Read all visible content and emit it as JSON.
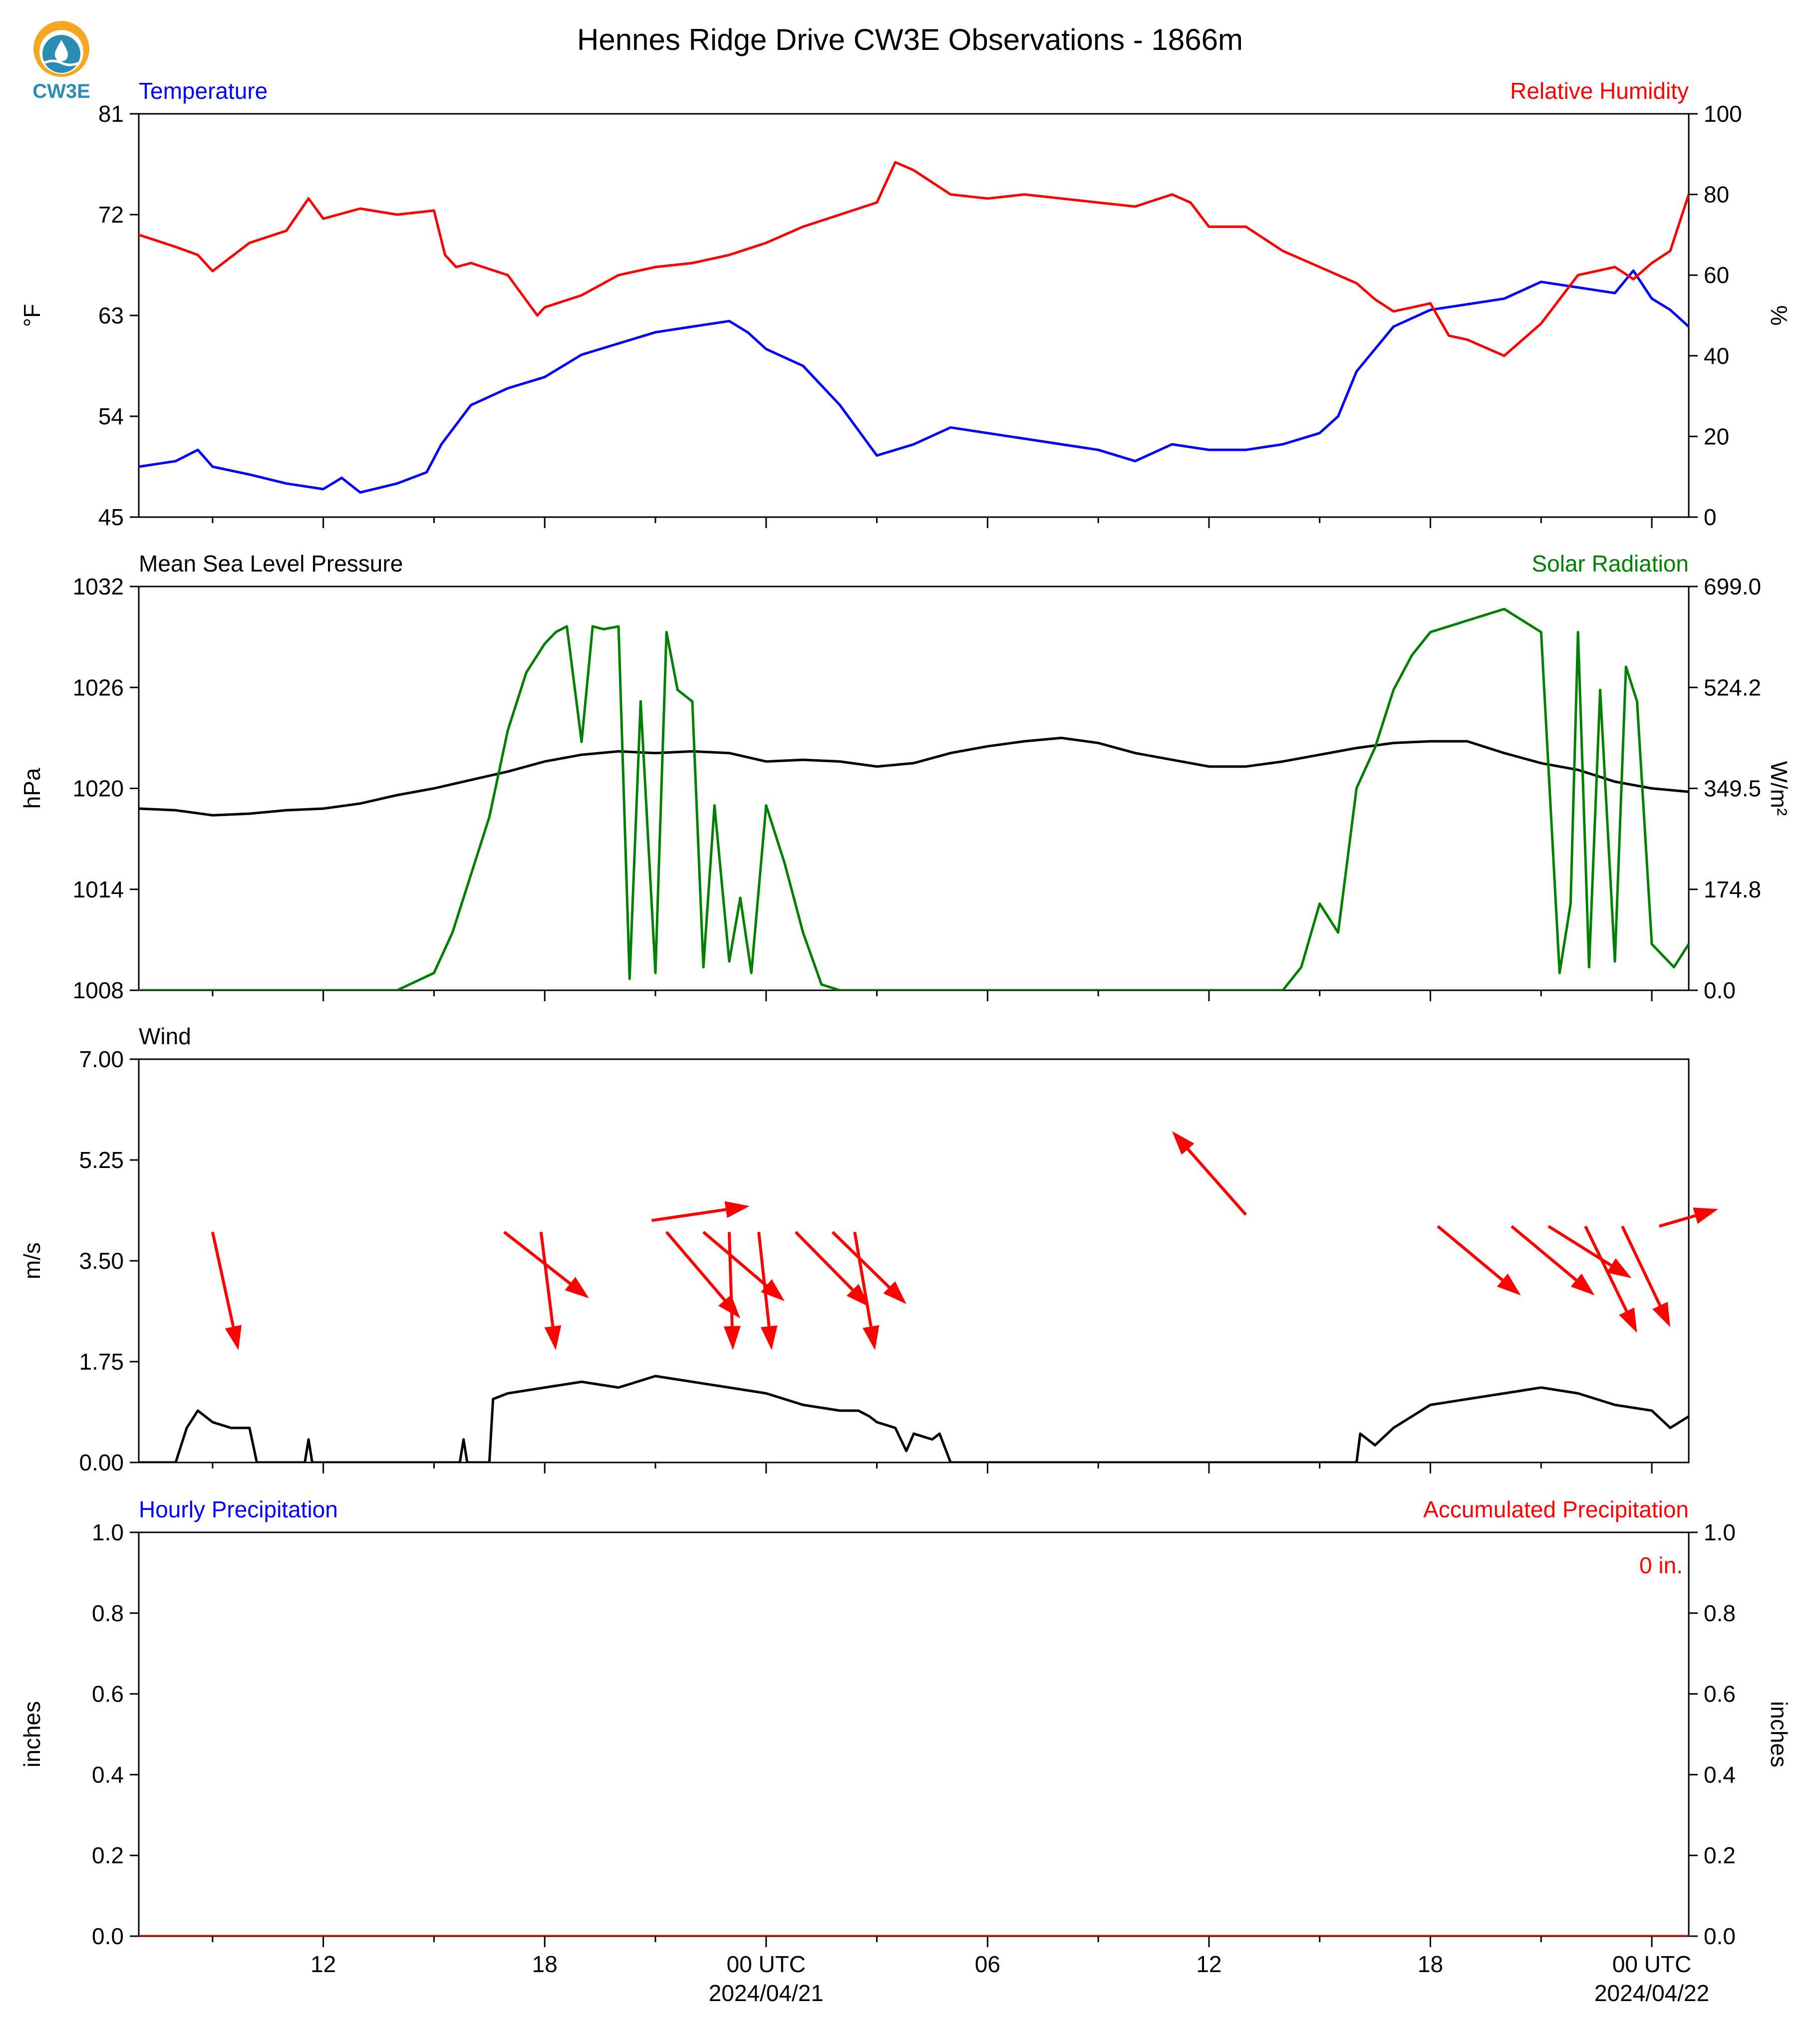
{
  "title": "Hennes Ridge Drive CW3E Observations - 1866m",
  "logo": {
    "text": "CW3E",
    "color": "#2b8db3",
    "accent": "#f5a623"
  },
  "colors": {
    "temperature": "#0000ff",
    "humidity": "#ff0000",
    "pressure": "#000000",
    "solar": "#008000",
    "wind": "#000000",
    "wind_arrows": "#ff0000",
    "precip_hourly": "#0000ff",
    "precip_accum": "#ff0000"
  },
  "time_axis": {
    "ticks": [
      {
        "hour": 12,
        "label": "12"
      },
      {
        "hour": 18,
        "label": "18"
      },
      {
        "hour": 24,
        "label": "00 UTC",
        "sublabel": "2024/04/21"
      },
      {
        "hour": 30,
        "label": "06"
      },
      {
        "hour": 36,
        "label": "12"
      },
      {
        "hour": 42,
        "label": "18"
      },
      {
        "hour": 48,
        "label": "00 UTC",
        "sublabel": "2024/04/22"
      }
    ],
    "minor_tick_hours": [
      9,
      15,
      21,
      27,
      33,
      39,
      45
    ]
  },
  "chart_data": [
    {
      "type": "line",
      "panel": "temperature-humidity",
      "x_range_hours": [
        7,
        49
      ],
      "left_title": "Temperature",
      "right_title": "Relative Humidity",
      "left_ylabel": "°F",
      "right_ylabel": "%",
      "left_ylim": [
        45,
        81
      ],
      "left_ticks": [
        "45",
        "54",
        "63",
        "72",
        "81"
      ],
      "right_ylim": [
        0,
        100
      ],
      "right_ticks": [
        "0",
        "20",
        "40",
        "60",
        "80",
        "100"
      ],
      "series": [
        {
          "name": "Temperature",
          "axis": "left",
          "x": [
            7.0,
            8.0,
            8.6,
            9.0,
            10.0,
            11.0,
            12.0,
            12.5,
            13.0,
            14.0,
            14.8,
            15.2,
            16.0,
            17.0,
            18.0,
            19.0,
            20.0,
            21.0,
            22.0,
            23.0,
            23.5,
            24.0,
            25.0,
            26.0,
            27.0,
            28.0,
            29.0,
            30.0,
            31.0,
            32.0,
            33.0,
            34.0,
            35.0,
            36.0,
            37.0,
            38.0,
            39.0,
            39.5,
            40.0,
            41.0,
            42.0,
            43.0,
            44.0,
            45.0,
            46.0,
            47.0,
            47.5,
            48.0,
            48.5,
            49.0
          ],
          "y": [
            49.5,
            50.0,
            51.0,
            49.5,
            48.8,
            48.0,
            47.5,
            48.5,
            47.2,
            48.0,
            49.0,
            51.5,
            55.0,
            56.5,
            57.5,
            59.5,
            60.5,
            61.5,
            62.0,
            62.5,
            61.5,
            60.0,
            58.5,
            55.0,
            50.5,
            51.5,
            53.0,
            52.5,
            52.0,
            51.5,
            51.0,
            50.0,
            51.5,
            51.0,
            51.0,
            51.5,
            52.5,
            54.0,
            58.0,
            62.0,
            63.5,
            64.0,
            64.5,
            66.0,
            65.5,
            65.0,
            67.0,
            64.5,
            63.5,
            62.0
          ]
        },
        {
          "name": "Relative Humidity",
          "axis": "right",
          "x": [
            7.0,
            8.0,
            8.6,
            9.0,
            10.0,
            11.0,
            11.6,
            12.0,
            13.0,
            14.0,
            15.0,
            15.3,
            15.6,
            16.0,
            17.0,
            17.8,
            18.0,
            19.0,
            20.0,
            21.0,
            22.0,
            23.0,
            24.0,
            25.0,
            26.0,
            27.0,
            27.5,
            28.0,
            29.0,
            30.0,
            31.0,
            32.0,
            33.0,
            34.0,
            35.0,
            35.5,
            36.0,
            37.0,
            38.0,
            39.0,
            40.0,
            40.5,
            41.0,
            42.0,
            42.5,
            43.0,
            44.0,
            45.0,
            46.0,
            47.0,
            47.5,
            48.0,
            48.5,
            49.0
          ],
          "y": [
            70.0,
            67.0,
            65.0,
            61.0,
            68.0,
            71.0,
            79.0,
            74.0,
            76.5,
            75.0,
            76.0,
            65.0,
            62.0,
            63.0,
            60.0,
            50.0,
            52.0,
            55.0,
            60.0,
            62.0,
            63.0,
            65.0,
            68.0,
            72.0,
            75.0,
            78.0,
            88.0,
            86.0,
            80.0,
            79.0,
            80.0,
            79.0,
            78.0,
            77.0,
            80.0,
            78.0,
            72.0,
            72.0,
            66.0,
            62.0,
            58.0,
            54.0,
            51.0,
            53.0,
            45.0,
            44.0,
            40.0,
            48.0,
            60.0,
            62.0,
            59.0,
            63.0,
            66.0,
            80.0
          ]
        }
      ]
    },
    {
      "type": "line",
      "panel": "pressure-solar",
      "x_range_hours": [
        7,
        49
      ],
      "left_title": "Mean Sea Level Pressure",
      "right_title": "Solar Radiation",
      "left_ylabel": "hPa",
      "right_ylabel": "W/m²",
      "left_ylim": [
        1008,
        1032
      ],
      "left_ticks": [
        "1008",
        "1014",
        "1020",
        "1026",
        "1032"
      ],
      "right_ylim": [
        0,
        699
      ],
      "right_ticks": [
        "0.0",
        "174.8",
        "349.5",
        "524.2",
        "699.0"
      ],
      "series": [
        {
          "name": "Mean Sea Level Pressure",
          "axis": "left",
          "x": [
            7,
            8,
            9,
            10,
            11,
            12,
            13,
            14,
            15,
            16,
            17,
            18,
            19,
            20,
            21,
            22,
            23,
            24,
            25,
            26,
            27,
            28,
            29,
            30,
            31,
            32,
            33,
            34,
            35,
            36,
            37,
            38,
            39,
            40,
            41,
            42,
            43,
            44,
            45,
            46,
            47,
            48,
            49
          ],
          "y": [
            1018.8,
            1018.7,
            1018.4,
            1018.5,
            1018.7,
            1018.8,
            1019.1,
            1019.6,
            1020.0,
            1020.5,
            1021.0,
            1021.6,
            1022.0,
            1022.2,
            1022.1,
            1022.2,
            1022.1,
            1021.6,
            1021.7,
            1021.6,
            1021.3,
            1021.5,
            1022.1,
            1022.5,
            1022.8,
            1023.0,
            1022.7,
            1022.1,
            1021.7,
            1021.3,
            1021.3,
            1021.6,
            1022.0,
            1022.4,
            1022.7,
            1022.8,
            1022.8,
            1022.1,
            1021.5,
            1021.1,
            1020.4,
            1020.0,
            1019.8
          ]
        },
        {
          "name": "Solar Radiation",
          "axis": "right",
          "x": [
            7.0,
            13.0,
            14.0,
            15.0,
            15.5,
            16.0,
            16.5,
            17.0,
            17.5,
            18.0,
            18.3,
            18.6,
            19.0,
            19.3,
            19.6,
            20.0,
            20.3,
            20.6,
            21.0,
            21.3,
            21.6,
            22.0,
            22.3,
            22.6,
            23.0,
            23.3,
            23.6,
            24.0,
            24.5,
            25.0,
            25.5,
            26.0,
            26.3,
            27.0,
            31.0,
            37.0,
            38.0,
            38.5,
            39.0,
            39.5,
            40.0,
            40.5,
            41.0,
            41.5,
            42.0,
            43.0,
            44.0,
            45.0,
            45.5,
            45.8,
            46.0,
            46.3,
            46.6,
            47.0,
            47.3,
            47.6,
            48.0,
            48.3,
            48.6,
            49.0
          ],
          "y": [
            0,
            0,
            0,
            30,
            100,
            200,
            300,
            450,
            550,
            600,
            620,
            630,
            430,
            630,
            625,
            630,
            20,
            500,
            30,
            620,
            520,
            500,
            40,
            320,
            50,
            160,
            30,
            320,
            220,
            100,
            10,
            0,
            0,
            0,
            0,
            0,
            0,
            40,
            150,
            100,
            350,
            420,
            520,
            580,
            620,
            640,
            660,
            620,
            30,
            150,
            620,
            40,
            520,
            50,
            560,
            500,
            80,
            60,
            40,
            80
          ]
        }
      ]
    },
    {
      "type": "line",
      "panel": "wind",
      "x_range_hours": [
        7,
        49
      ],
      "left_title": "Wind",
      "left_ylabel": "m/s",
      "left_ylim": [
        0,
        7
      ],
      "left_ticks": [
        "0.00",
        "1.75",
        "3.50",
        "5.25",
        "7.00"
      ],
      "series": [
        {
          "name": "Wind",
          "axis": "left",
          "x": [
            7.0,
            8.0,
            8.3,
            8.6,
            9.0,
            9.5,
            10.0,
            10.2,
            11.0,
            11.5,
            11.6,
            11.7,
            12.0,
            15.7,
            15.8,
            15.9,
            16.5,
            16.6,
            17.0,
            18.0,
            19.0,
            20.0,
            21.0,
            22.0,
            23.0,
            24.0,
            25.0,
            26.0,
            26.5,
            26.8,
            27.0,
            27.5,
            27.8,
            28.0,
            28.5,
            28.7,
            29.0,
            40.0,
            40.1,
            40.5,
            41.0,
            42.0,
            43.0,
            44.0,
            45.0,
            46.0,
            47.0,
            48.0,
            48.5,
            49.0
          ],
          "y": [
            0,
            0,
            0.6,
            0.9,
            0.7,
            0.6,
            0.6,
            0,
            0,
            0,
            0.4,
            0,
            0,
            0,
            0.4,
            0,
            0,
            1.1,
            1.2,
            1.3,
            1.4,
            1.3,
            1.5,
            1.4,
            1.3,
            1.2,
            1.0,
            0.9,
            0.9,
            0.8,
            0.7,
            0.6,
            0.2,
            0.5,
            0.4,
            0.5,
            0,
            0,
            0.5,
            0.3,
            0.6,
            1.0,
            1.1,
            1.2,
            1.3,
            1.2,
            1.0,
            0.9,
            0.6,
            0.8
          ]
        },
        {
          "name": "Wind direction vectors",
          "axis": "left",
          "arrows": [
            {
              "x": 9.0,
              "y": 4.0,
              "dx": 0.7,
              "dy": -2.05
            },
            {
              "x": 16.9,
              "y": 4.0,
              "dx": 2.3,
              "dy": -1.15
            },
            {
              "x": 17.9,
              "y": 4.0,
              "dx": 0.4,
              "dy": -2.05
            },
            {
              "x": 20.9,
              "y": 4.2,
              "dx": 2.65,
              "dy": 0.25
            },
            {
              "x": 21.3,
              "y": 4.0,
              "dx": 2.0,
              "dy": -1.5
            },
            {
              "x": 22.3,
              "y": 4.0,
              "dx": 2.2,
              "dy": -1.2
            },
            {
              "x": 23.0,
              "y": 4.0,
              "dx": 0.1,
              "dy": -2.05
            },
            {
              "x": 23.8,
              "y": 4.0,
              "dx": 0.35,
              "dy": -2.05
            },
            {
              "x": 24.8,
              "y": 4.0,
              "dx": 2.0,
              "dy": -1.3
            },
            {
              "x": 25.8,
              "y": 4.0,
              "dx": 2.0,
              "dy": -1.25
            },
            {
              "x": 26.4,
              "y": 4.0,
              "dx": 0.55,
              "dy": -2.05
            },
            {
              "x": 37.0,
              "y": 4.3,
              "dx": -2.0,
              "dy": 1.45
            },
            {
              "x": 42.2,
              "y": 4.1,
              "dx": 2.25,
              "dy": -1.2
            },
            {
              "x": 44.2,
              "y": 4.1,
              "dx": 2.25,
              "dy": -1.2
            },
            {
              "x": 45.2,
              "y": 4.1,
              "dx": 2.25,
              "dy": -0.9
            },
            {
              "x": 46.2,
              "y": 4.1,
              "dx": 1.4,
              "dy": -1.85
            },
            {
              "x": 47.2,
              "y": 4.1,
              "dx": 1.3,
              "dy": -1.75
            },
            {
              "x": 48.2,
              "y": 4.1,
              "dx": 1.6,
              "dy": 0.3
            }
          ]
        }
      ]
    },
    {
      "type": "line",
      "panel": "precipitation",
      "x_range_hours": [
        7,
        49
      ],
      "left_title": "Hourly Precipitation",
      "right_title": "Accumulated Precipitation",
      "left_ylabel": "inches",
      "right_ylabel": "inches",
      "left_ylim": [
        0,
        1
      ],
      "left_ticks": [
        "0.0",
        "0.2",
        "0.4",
        "0.6",
        "0.8",
        "1.0"
      ],
      "right_ylim": [
        0,
        1
      ],
      "right_ticks": [
        "0.0",
        "0.2",
        "0.4",
        "0.6",
        "0.8",
        "1.0"
      ],
      "annotation": "0 in.",
      "series": [
        {
          "name": "Hourly Precipitation",
          "axis": "left",
          "x": [
            7,
            49
          ],
          "y": [
            0,
            0
          ]
        },
        {
          "name": "Accumulated Precipitation",
          "axis": "right",
          "x": [
            7,
            49
          ],
          "y": [
            0,
            0
          ]
        }
      ]
    }
  ]
}
